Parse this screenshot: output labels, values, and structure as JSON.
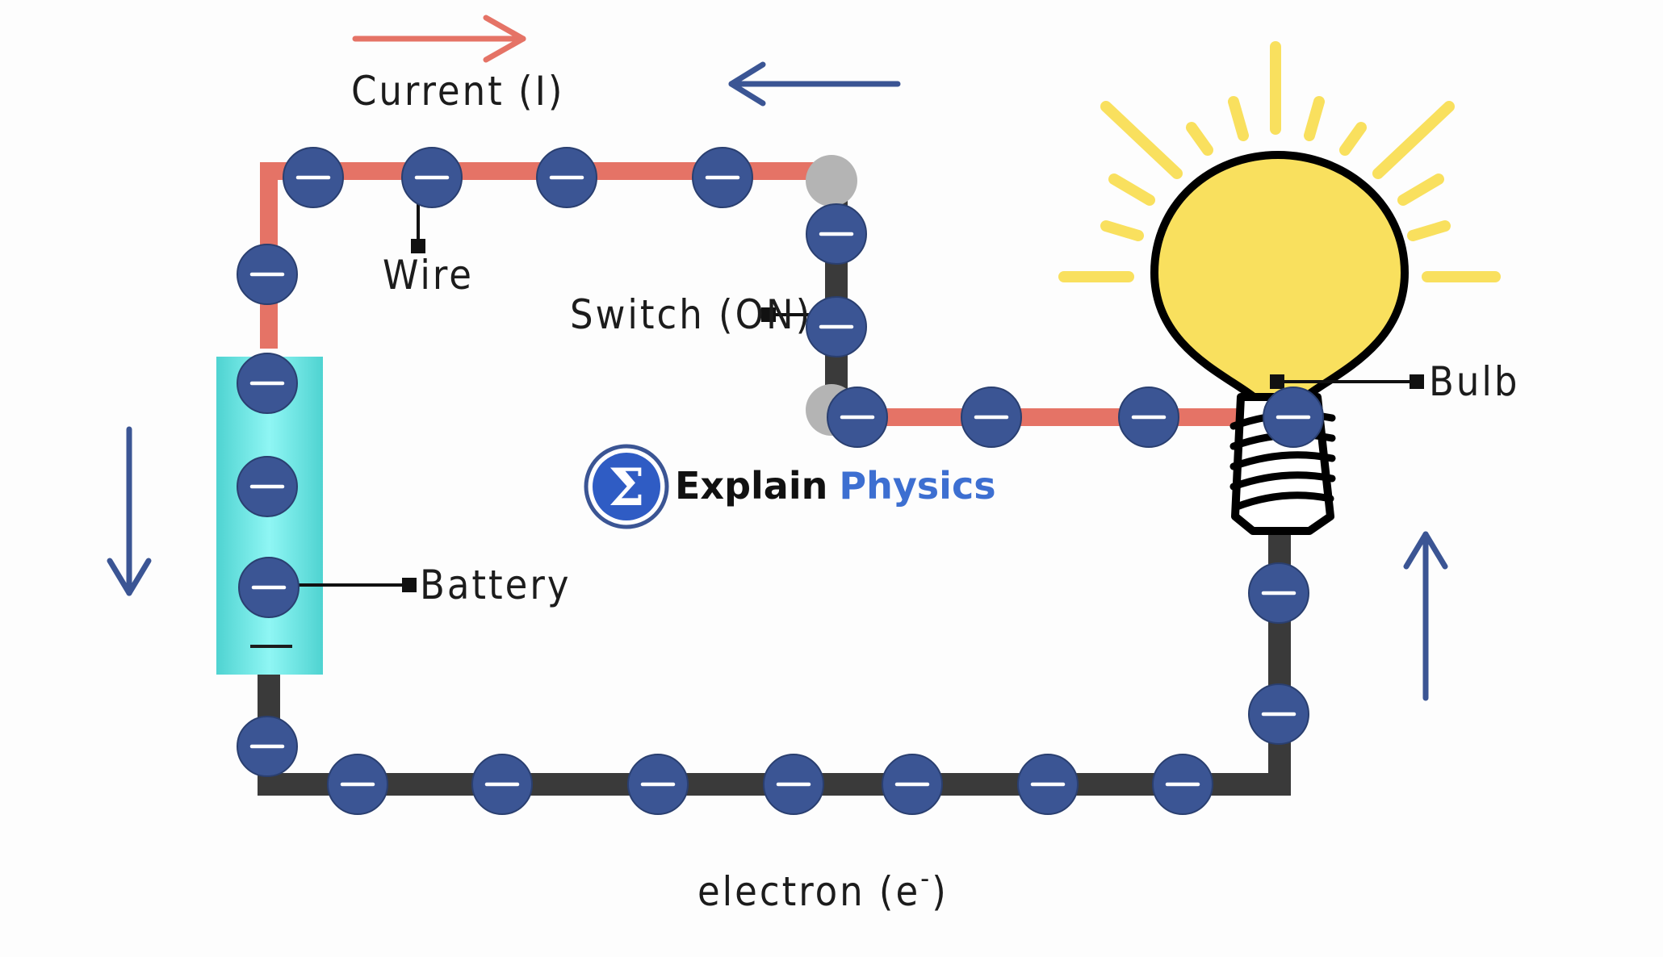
{
  "labels": {
    "current": "Current (I)",
    "wire": "Wire",
    "switch": "Switch (ON)",
    "battery": "Battery",
    "bulb": "Bulb",
    "electron": "electron (e",
    "electron_sup": "-",
    "electron_close": ")"
  },
  "logo": {
    "symbol": "Σ",
    "word1": "Explain",
    "word2": "Physics"
  },
  "colors": {
    "current_wire": "#e57366",
    "electron_wire": "#3a3a3a",
    "electron": "#3b5594",
    "current_arrow": "#e57366",
    "electron_arrow": "#3b5594",
    "battery": "#5ee3e0",
    "bulb": "#f9e05e",
    "switch_node": "#b4b4b4"
  },
  "electron_symbol": "minus"
}
